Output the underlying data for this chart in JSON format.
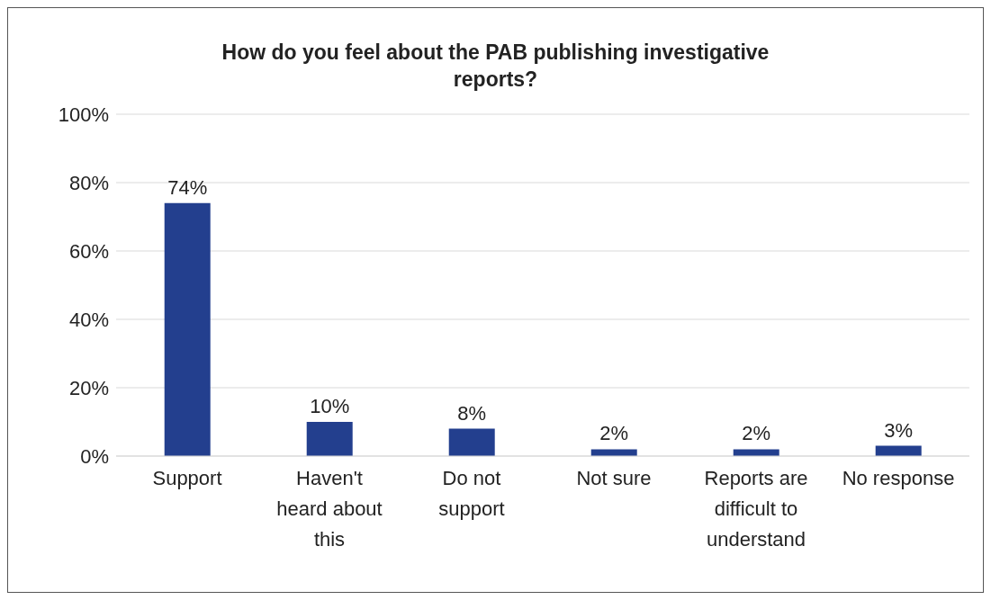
{
  "chart_data": {
    "type": "bar",
    "title": "How do you feel about the PAB publishing investigative reports?",
    "categories": [
      "Support",
      "Haven't heard about this",
      "Do not support",
      "Not sure",
      "Reports are difficult to understand",
      "No response"
    ],
    "values": [
      74,
      10,
      8,
      2,
      2,
      3
    ],
    "value_labels": [
      "74%",
      "10%",
      "8%",
      "2%",
      "2%",
      "3%"
    ],
    "color": "#233f8e",
    "ylim": [
      0,
      100
    ],
    "yticks": [
      {
        "value": 0,
        "label": "0%"
      },
      {
        "value": 20,
        "label": "20%"
      },
      {
        "value": 40,
        "label": "40%"
      },
      {
        "value": 60,
        "label": "60%"
      },
      {
        "value": 80,
        "label": "80%"
      },
      {
        "value": 100,
        "label": "100%"
      }
    ],
    "grid": "y"
  }
}
